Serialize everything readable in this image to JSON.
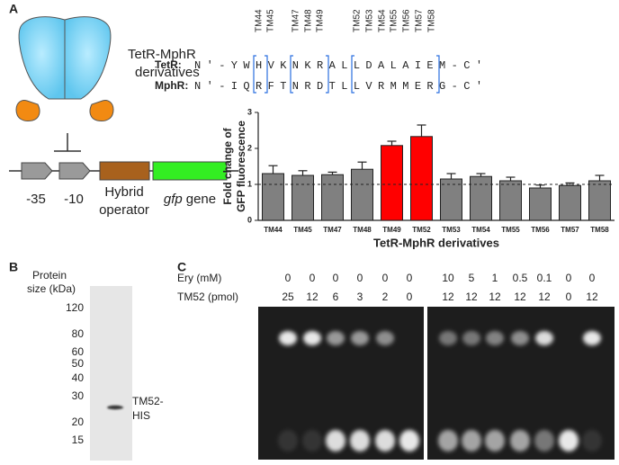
{
  "panel_labels": [
    "A",
    "B",
    "C"
  ],
  "diagram": {
    "protein_label": [
      "TetR-MphR",
      "derivatives"
    ],
    "promoter_labels": [
      "-35",
      "-10"
    ],
    "operator_label": [
      "Hybrid",
      "operator"
    ],
    "gene_label": {
      "italic": "gfp",
      "rest": "gene"
    }
  },
  "alignment": {
    "mutants": [
      {
        "label": "TM44",
        "color": "#222222"
      },
      {
        "label": "TM45",
        "color": "#222222"
      },
      {
        "label": "TM47",
        "color": "#222222"
      },
      {
        "label": "TM48",
        "color": "#222222"
      },
      {
        "label": "TM49",
        "color": "#e02020"
      },
      {
        "label": "TM52",
        "color": "#e02020"
      },
      {
        "label": "TM53",
        "color": "#222222"
      },
      {
        "label": "TM54",
        "color": "#222222"
      },
      {
        "label": "TM55",
        "color": "#222222"
      },
      {
        "label": "TM56",
        "color": "#222222"
      },
      {
        "label": "TM57",
        "color": "#222222"
      },
      {
        "label": "TM58",
        "color": "#222222"
      }
    ],
    "rows": [
      {
        "name": "TetR:",
        "sequence": "N'-YWHVKNKRALLDALAIEM-C'"
      },
      {
        "name": "MphR:",
        "sequence": "N'-IQRFTNRDTLLVRMMERG-C'"
      }
    ]
  },
  "chart_data": {
    "type": "bar",
    "ylabel": [
      "Fold change of",
      "GFP fluorescence"
    ],
    "xlabel": "TetR-MphR derivatives",
    "categories": [
      "TM44",
      "TM45",
      "TM47",
      "TM48",
      "TM49",
      "TM52",
      "TM53",
      "TM54",
      "TM55",
      "TM56",
      "TM57",
      "TM58"
    ],
    "values": [
      1.3,
      1.25,
      1.27,
      1.42,
      2.08,
      2.33,
      1.15,
      1.22,
      1.1,
      0.9,
      0.97,
      1.1
    ],
    "errors": [
      0.22,
      0.13,
      0.07,
      0.2,
      0.12,
      0.32,
      0.15,
      0.08,
      0.1,
      0.08,
      0.07,
      0.15
    ],
    "colors": [
      "#808080",
      "#808080",
      "#808080",
      "#808080",
      "#ff0000",
      "#ff0000",
      "#808080",
      "#808080",
      "#808080",
      "#808080",
      "#808080",
      "#808080"
    ],
    "ylim": [
      0,
      3
    ],
    "yticks": [
      0,
      1,
      2,
      3
    ],
    "reference_line": 1
  },
  "gel_b": {
    "title": [
      "Protein",
      "size (kDa)"
    ],
    "markers": [
      120,
      80,
      60,
      50,
      40,
      30,
      20,
      15
    ],
    "band_label": [
      "TM52-",
      "HIS"
    ]
  },
  "gel_c": {
    "row_labels": [
      "Ery (mM)",
      "TM52 (pmol)"
    ],
    "ery": [
      0,
      0,
      0,
      0,
      0,
      0,
      10,
      5,
      1,
      0.5,
      0.1,
      0,
      0
    ],
    "tm52": [
      25,
      12,
      6,
      3,
      2,
      0,
      12,
      12,
      12,
      12,
      12,
      0,
      12
    ]
  }
}
